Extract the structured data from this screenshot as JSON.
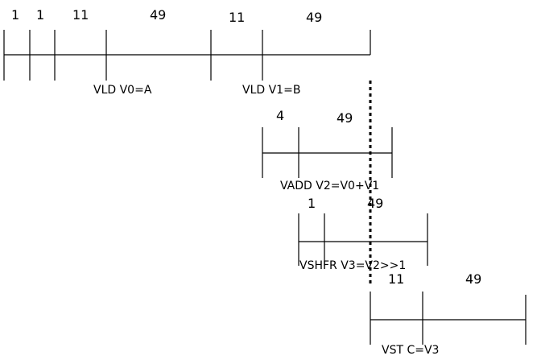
{
  "diagram": {
    "row1": {
      "numbers": [
        "1",
        "1",
        "11",
        "49",
        "11",
        "49"
      ],
      "labels": [
        "VLD V0=A",
        "VLD V1=B"
      ]
    },
    "row2": {
      "numbers": [
        "4",
        "49"
      ],
      "label": "VADD V2=V0+V1"
    },
    "row3": {
      "numbers": [
        "1",
        "49"
      ],
      "label": "VSHFR V3=V2>>1"
    },
    "row4": {
      "numbers": [
        "11",
        "49"
      ],
      "label": "VST C=V3"
    }
  }
}
